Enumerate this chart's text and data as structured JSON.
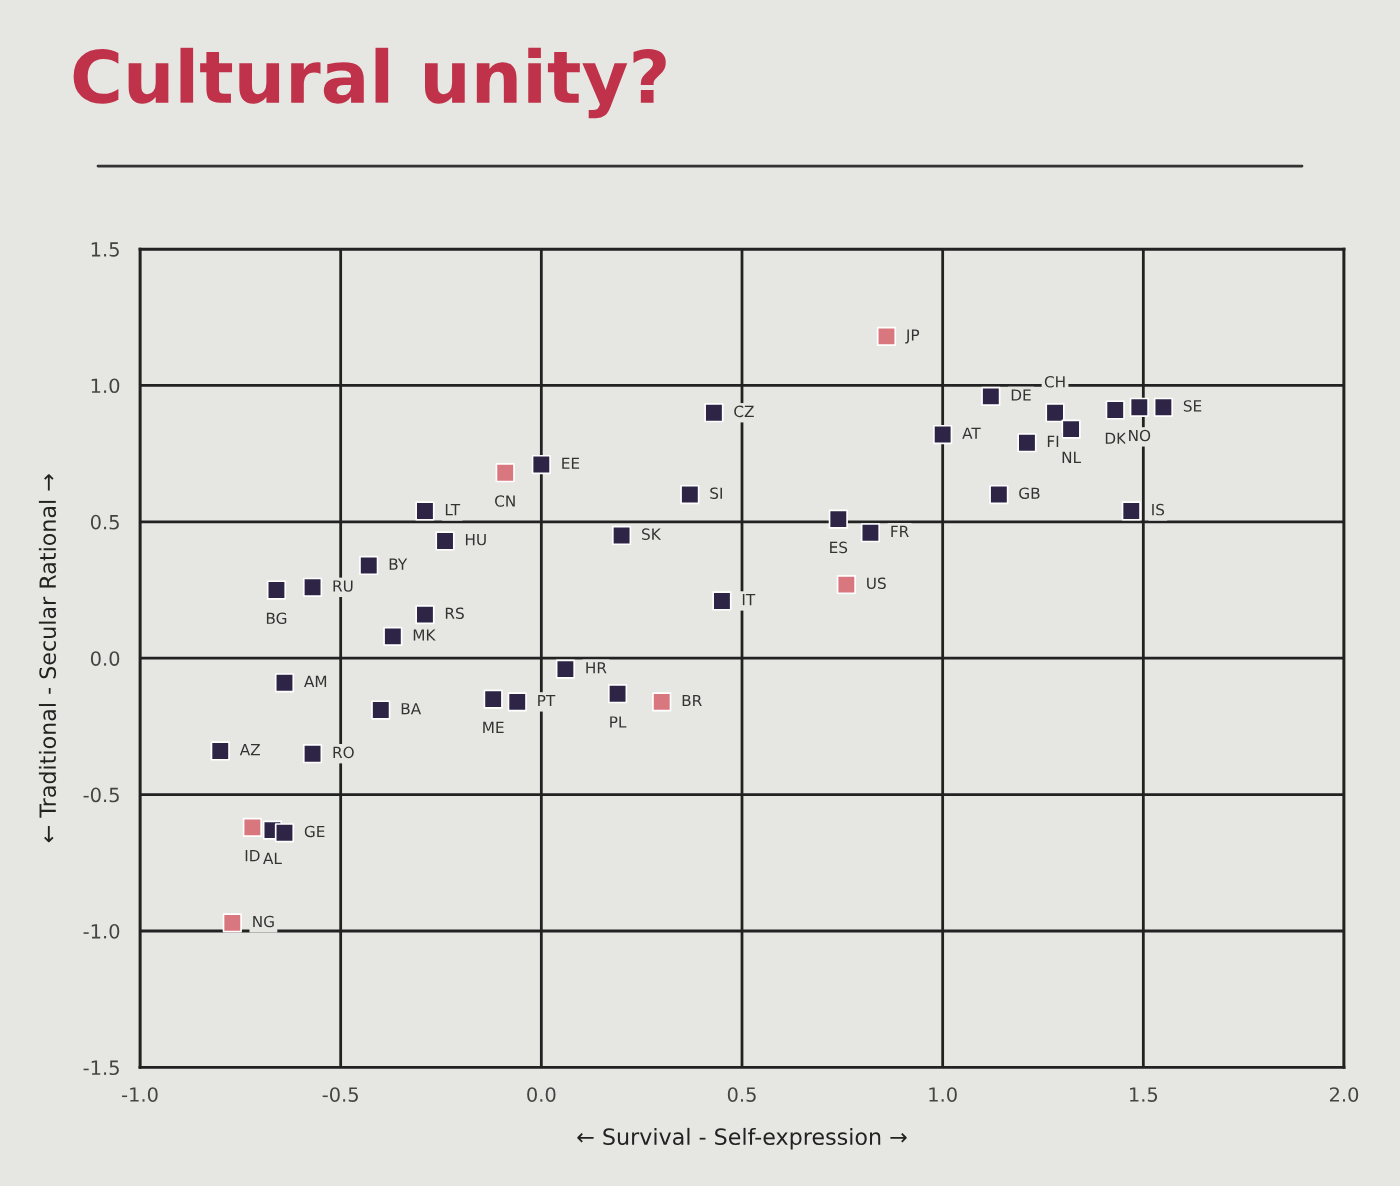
{
  "chart_data": {
    "type": "scatter",
    "title": "Cultural unity?",
    "xlabel": "← Survival - Self-expression →",
    "ylabel": "← Traditional - Secular Rational →",
    "series": [
      {
        "color": "#2e2446",
        "x": [
          1.12,
          1.28,
          1.43,
          1.49,
          1.55,
          1.0,
          1.21,
          1.32,
          1.14,
          1.47,
          0.74,
          0.82,
          0.45,
          0.43,
          0.37,
          0.2,
          0.0,
          -0.29,
          -0.24,
          -0.43,
          -0.66,
          -0.57,
          -0.29,
          -0.37,
          0.06,
          -0.64,
          -0.4,
          -0.12,
          -0.06,
          0.19,
          -0.8,
          -0.57,
          -0.67,
          -0.64
        ],
        "values": [
          0.96,
          0.9,
          0.91,
          0.92,
          0.92,
          0.82,
          0.79,
          0.84,
          0.6,
          0.54,
          0.51,
          0.46,
          0.21,
          0.9,
          0.6,
          0.45,
          0.71,
          0.54,
          0.43,
          0.34,
          0.25,
          0.26,
          0.16,
          0.08,
          -0.04,
          -0.09,
          -0.19,
          -0.15,
          -0.16,
          -0.13,
          -0.34,
          -0.35,
          -0.63,
          -0.64
        ]
      },
      {
        "color": "#d9777e",
        "x": [
          0.86,
          0.76,
          -0.09,
          0.3,
          -0.72,
          -0.77
        ],
        "values": [
          1.18,
          0.27,
          0.68,
          -0.16,
          -0.62,
          -0.97
        ]
      }
    ],
    "annotations": [
      {
        "text": "DE",
        "x": 1.12,
        "y": 0.96
      },
      {
        "text": "CH",
        "x": 1.28,
        "y": 0.9
      },
      {
        "text": "DK",
        "x": 1.43,
        "y": 0.91
      },
      {
        "text": "NO",
        "x": 1.49,
        "y": 0.92
      },
      {
        "text": "SE",
        "x": 1.55,
        "y": 0.92
      },
      {
        "text": "AT",
        "x": 1.0,
        "y": 0.82
      },
      {
        "text": "FI",
        "x": 1.21,
        "y": 0.79
      },
      {
        "text": "NL",
        "x": 1.32,
        "y": 0.84
      },
      {
        "text": "GB",
        "x": 1.14,
        "y": 0.6
      },
      {
        "text": "IS",
        "x": 1.47,
        "y": 0.54
      },
      {
        "text": "ES",
        "x": 0.74,
        "y": 0.51
      },
      {
        "text": "FR",
        "x": 0.82,
        "y": 0.46
      },
      {
        "text": "IT",
        "x": 0.45,
        "y": 0.21
      },
      {
        "text": "CZ",
        "x": 0.43,
        "y": 0.9
      },
      {
        "text": "SI",
        "x": 0.37,
        "y": 0.6
      },
      {
        "text": "SK",
        "x": 0.2,
        "y": 0.45
      },
      {
        "text": "EE",
        "x": 0.0,
        "y": 0.71
      },
      {
        "text": "LT",
        "x": -0.29,
        "y": 0.54
      },
      {
        "text": "HU",
        "x": -0.24,
        "y": 0.43
      },
      {
        "text": "BY",
        "x": -0.43,
        "y": 0.34
      },
      {
        "text": "BG",
        "x": -0.66,
        "y": 0.25
      },
      {
        "text": "RU",
        "x": -0.57,
        "y": 0.26
      },
      {
        "text": "RS",
        "x": -0.29,
        "y": 0.16
      },
      {
        "text": "MK",
        "x": -0.37,
        "y": 0.08
      },
      {
        "text": "HR",
        "x": 0.06,
        "y": -0.04
      },
      {
        "text": "AM",
        "x": -0.64,
        "y": -0.09
      },
      {
        "text": "BA",
        "x": -0.4,
        "y": -0.19
      },
      {
        "text": "ME",
        "x": -0.12,
        "y": -0.15
      },
      {
        "text": "PT",
        "x": -0.06,
        "y": -0.16
      },
      {
        "text": "PL",
        "x": 0.19,
        "y": -0.13
      },
      {
        "text": "AZ",
        "x": -0.8,
        "y": -0.34
      },
      {
        "text": "RO",
        "x": -0.57,
        "y": -0.35
      },
      {
        "text": "AL",
        "x": -0.67,
        "y": -0.63
      },
      {
        "text": "GE",
        "x": -0.64,
        "y": -0.64
      },
      {
        "text": "JP",
        "x": 0.86,
        "y": 1.18
      },
      {
        "text": "US",
        "x": 0.76,
        "y": 0.27
      },
      {
        "text": "CN",
        "x": -0.09,
        "y": 0.68
      },
      {
        "text": "BR",
        "x": 0.3,
        "y": -0.16
      },
      {
        "text": "ID",
        "x": -0.72,
        "y": -0.62
      },
      {
        "text": "NG",
        "x": -0.77,
        "y": -0.97
      }
    ],
    "xlim": [
      -1.0,
      2.0
    ],
    "ylim": [
      -1.5,
      1.5
    ],
    "xticks": [
      {
        "value": -1.0,
        "label": "-1.0"
      },
      {
        "value": -0.5,
        "label": "-0.5"
      },
      {
        "value": 0.0,
        "label": "0.0"
      },
      {
        "value": 0.5,
        "label": "0.5"
      },
      {
        "value": 1.0,
        "label": "1.0"
      },
      {
        "value": 1.5,
        "label": "1.5"
      },
      {
        "value": 2.0,
        "label": "2.0"
      }
    ],
    "yticks": [
      {
        "value": -1.5,
        "label": "-1.5"
      },
      {
        "value": -1.0,
        "label": "-1.0"
      },
      {
        "value": -0.5,
        "label": "-0.5"
      },
      {
        "value": 0.0,
        "label": "0.0"
      },
      {
        "value": 0.5,
        "label": "0.5"
      },
      {
        "value": 1.0,
        "label": "1.0"
      },
      {
        "value": 1.5,
        "label": "1.5"
      }
    ],
    "grid": true,
    "legend": false,
    "marker": "square"
  }
}
